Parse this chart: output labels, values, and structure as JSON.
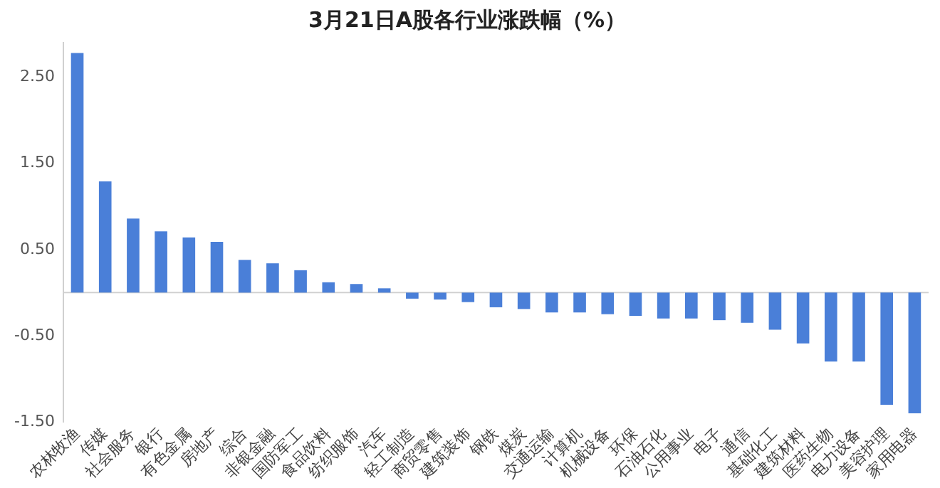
{
  "chart_data": {
    "type": "bar",
    "title": "3月21日A股各行业涨跌幅（%）",
    "categories": [
      "农林牧渔",
      "传媒",
      "社会服务",
      "银行",
      "有色金属",
      "房地产",
      "综合",
      "非银金融",
      "国防军工",
      "食品饮料",
      "纺织服饰",
      "汽车",
      "轻工制造",
      "商贸零售",
      "建筑装饰",
      "钢铁",
      "煤炭",
      "交通运输",
      "计算机",
      "机械设备",
      "环保",
      "石油石化",
      "公用事业",
      "电子",
      "通信",
      "基础化工",
      "建筑材料",
      "医药生物",
      "电力设备",
      "美容护理",
      "家用电器"
    ],
    "values": [
      2.78,
      1.29,
      0.86,
      0.71,
      0.64,
      0.59,
      0.38,
      0.34,
      0.26,
      0.12,
      0.1,
      0.05,
      -0.07,
      -0.08,
      -0.11,
      -0.17,
      -0.19,
      -0.23,
      -0.23,
      -0.25,
      -0.27,
      -0.3,
      -0.3,
      -0.32,
      -0.35,
      -0.43,
      -0.59,
      -0.8,
      -0.8,
      -1.3,
      -1.4
    ],
    "color": "#4a7fd8",
    "ylim": [
      -1.5,
      2.9
    ],
    "yticks": [
      {
        "value": -1.5,
        "label": "-1.50"
      },
      {
        "value": -0.5,
        "label": "-0.50"
      },
      {
        "value": 0.5,
        "label": "0.50"
      },
      {
        "value": 1.5,
        "label": "1.50"
      },
      {
        "value": 2.5,
        "label": "2.50"
      }
    ],
    "grid": false,
    "legend": false
  }
}
